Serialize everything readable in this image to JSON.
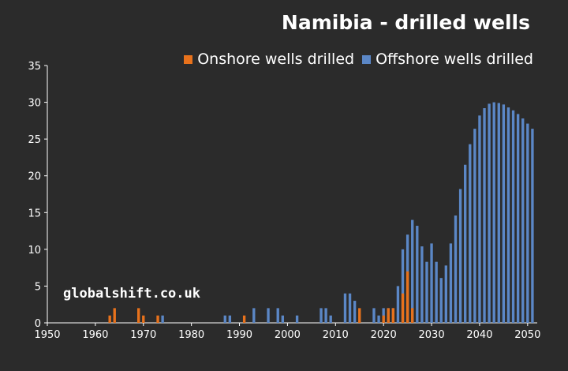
{
  "chart_data": {
    "type": "bar",
    "title": "Namibia - drilled wells",
    "xlabel": "",
    "ylabel": "",
    "xlim": [
      1950,
      2051
    ],
    "ylim": [
      0,
      35
    ],
    "y_ticks": [
      "0",
      "5",
      "10",
      "15",
      "20",
      "25",
      "30",
      "35"
    ],
    "x_ticks": [
      "1950",
      "1960",
      "1970",
      "1980",
      "1990",
      "2000",
      "2010",
      "2020",
      "2030",
      "2040",
      "2050"
    ],
    "grid": false,
    "legend_position": "top-right",
    "colors": {
      "onshore": "#e8721c",
      "offshore": "#5b87c6",
      "background": "#2b2b2b",
      "axis": "#ffffff"
    },
    "series": [
      {
        "name": "Onshore wells drilled",
        "points": [
          [
            1963,
            1
          ],
          [
            1964,
            2
          ],
          [
            1969,
            2
          ],
          [
            1970,
            1
          ],
          [
            1973,
            1
          ],
          [
            1991,
            1
          ],
          [
            2015,
            2
          ],
          [
            2020,
            1
          ],
          [
            2021,
            2
          ],
          [
            2022,
            2
          ],
          [
            2024,
            4
          ],
          [
            2025,
            7
          ],
          [
            2026,
            2
          ]
        ]
      },
      {
        "name": "Offshore wells drilled",
        "points": [
          [
            1974,
            1
          ],
          [
            1987,
            1
          ],
          [
            1988,
            1
          ],
          [
            1993,
            2
          ],
          [
            1996,
            2
          ],
          [
            1998,
            2
          ],
          [
            1999,
            1
          ],
          [
            2002,
            1
          ],
          [
            2007,
            2
          ],
          [
            2008,
            2
          ],
          [
            2009,
            1
          ],
          [
            2012,
            4
          ],
          [
            2013,
            4
          ],
          [
            2014,
            3
          ],
          [
            2018,
            2
          ],
          [
            2019,
            1
          ],
          [
            2020,
            2
          ],
          [
            2021,
            2
          ],
          [
            2022,
            2
          ],
          [
            2023,
            5
          ],
          [
            2024,
            10
          ],
          [
            2025,
            12
          ],
          [
            2026,
            14
          ],
          [
            2027,
            13.2
          ],
          [
            2028,
            10.4
          ],
          [
            2029,
            8.3
          ],
          [
            2030,
            10.8
          ],
          [
            2031,
            8.3
          ],
          [
            2032,
            6.1
          ],
          [
            2033,
            7.8
          ],
          [
            2034,
            10.8
          ],
          [
            2035,
            14.6
          ],
          [
            2036,
            18.2
          ],
          [
            2037,
            21.5
          ],
          [
            2038,
            24.3
          ],
          [
            2039,
            26.4
          ],
          [
            2040,
            28.2
          ],
          [
            2041,
            29.2
          ],
          [
            2042,
            29.8
          ],
          [
            2043,
            30.0
          ],
          [
            2044,
            29.9
          ],
          [
            2045,
            29.7
          ],
          [
            2046,
            29.3
          ],
          [
            2047,
            28.9
          ],
          [
            2048,
            28.4
          ],
          [
            2049,
            27.8
          ],
          [
            2050,
            27.1
          ],
          [
            2051,
            26.4
          ]
        ]
      }
    ],
    "annotations": [
      "globalshift.co.uk"
    ]
  }
}
